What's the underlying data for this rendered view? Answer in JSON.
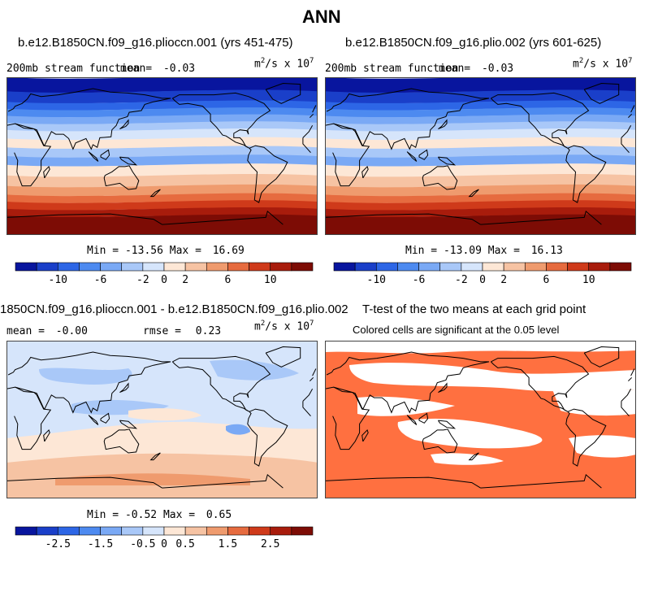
{
  "figure": {
    "title": "ANN"
  },
  "colors": {
    "blue_red_12": [
      "#08159e",
      "#1a3fc9",
      "#2d66e6",
      "#4d8af0",
      "#7aa9f5",
      "#a9c8f8",
      "#d6e5fb",
      "#fde7d6",
      "#f6c3a3",
      "#ef9b6e",
      "#e66b3f",
      "#cf3a1a",
      "#a81c0c",
      "#7d0c05"
    ],
    "land_outline": "#000000",
    "significance_fill": "#ff7040",
    "frame": "#444444"
  },
  "panels": {
    "p1": {
      "title": "b.e12.B1850CN.f09_g16.plioccn.001 (yrs 451-475)",
      "var_label": "200mb stream function",
      "mean_label": "mean=",
      "mean_value": "-0.03",
      "units_base": "m",
      "units_exp": "2",
      "units_mid": "/s x 10",
      "units_exp2": "7",
      "min_label": "Min = ",
      "min_value": "-13.56",
      "max_label": "Max = ",
      "max_value": "16.69",
      "colorbar_ticks": [
        "-10",
        "-6",
        "-2",
        "0",
        "2",
        "6",
        "10"
      ]
    },
    "p2": {
      "title": "b.e12.B1850CN.f09_g16.plio.002 (yrs 601-625)",
      "var_label": "200mb stream function",
      "mean_label": "mean=",
      "mean_value": "-0.03",
      "units_base": "m",
      "units_exp": "2",
      "units_mid": "/s x 10",
      "units_exp2": "7",
      "min_label": "Min = ",
      "min_value": "-13.09",
      "max_label": "Max = ",
      "max_value": "16.13",
      "colorbar_ticks": [
        "-10",
        "-6",
        "-2",
        "0",
        "2",
        "6",
        "10"
      ]
    },
    "p3": {
      "title": "1850CN.f09_g16.plioccn.001 - b.e12.B1850CN.f09_g16.plio.002",
      "mean_label": "mean =",
      "mean_value": "-0.00",
      "rmse_label": "rmse =",
      "rmse_value": "0.23",
      "units_base": "m",
      "units_exp": "2",
      "units_mid": "/s x 10",
      "units_exp2": "7",
      "min_label": "Min = ",
      "min_value": "-0.52",
      "max_label": "Max = ",
      "max_value": "0.65",
      "colorbar_ticks": [
        "-2.5",
        "-1.5",
        "-0.5",
        "0",
        "0.5",
        "1.5",
        "2.5"
      ]
    },
    "p4": {
      "title": "T-test of the two means at each grid point",
      "subtitle": "Colored cells are significant at the 0.05 level"
    }
  }
}
